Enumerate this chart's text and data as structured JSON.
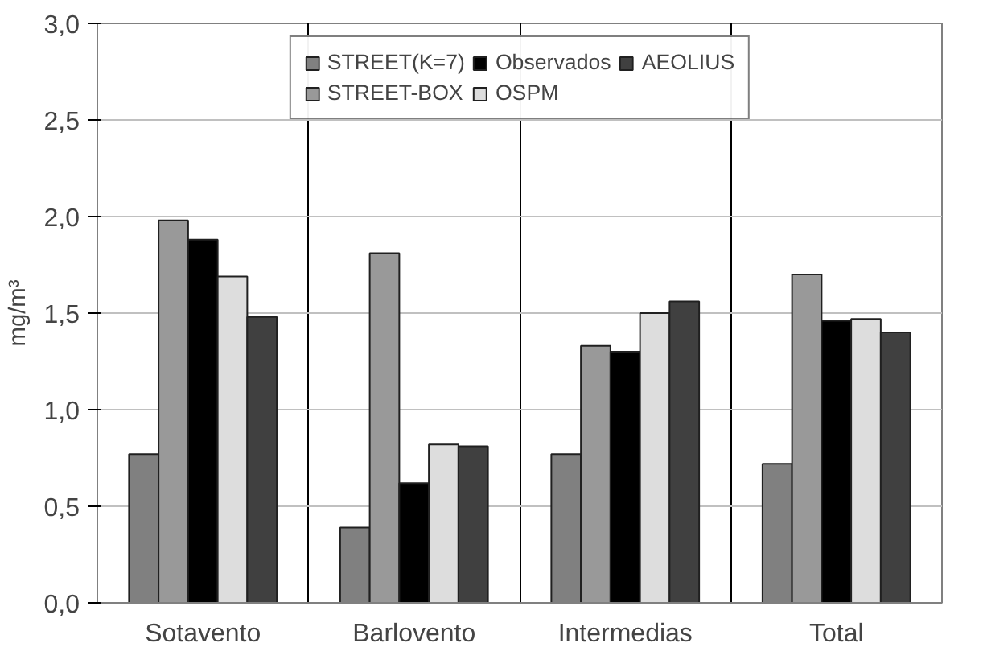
{
  "chart_data": {
    "type": "bar",
    "ylabel": "mg/m³",
    "categories": [
      "Sotavento",
      "Barlovento",
      "Intermedias",
      "Total"
    ],
    "series": [
      {
        "name": "STREET(K=7)",
        "color": "#808080",
        "values": [
          0.77,
          0.39,
          0.77,
          0.72
        ]
      },
      {
        "name": "STREET-BOX",
        "color": "#999999",
        "values": [
          1.98,
          1.81,
          1.33,
          1.7
        ]
      },
      {
        "name": "Observados",
        "color": "#000000",
        "values": [
          1.88,
          0.62,
          1.3,
          1.46
        ]
      },
      {
        "name": "OSPM",
        "color": "#dddddd",
        "values": [
          1.69,
          0.82,
          1.5,
          1.47
        ]
      },
      {
        "name": "AEOLIUS",
        "color": "#404040",
        "values": [
          1.48,
          0.81,
          1.56,
          1.4
        ]
      }
    ],
    "ylim": [
      0,
      3
    ],
    "yticks": [
      {
        "value": 0,
        "label": "0,0"
      },
      {
        "value": 0.5,
        "label": "0,5"
      },
      {
        "value": 1,
        "label": "1,0"
      },
      {
        "value": 1.5,
        "label": "1,5"
      },
      {
        "value": 2,
        "label": "2,0"
      },
      {
        "value": 2.5,
        "label": "2,5"
      },
      {
        "value": 3,
        "label": "3,0"
      }
    ],
    "grid": "y",
    "legend": "top"
  }
}
